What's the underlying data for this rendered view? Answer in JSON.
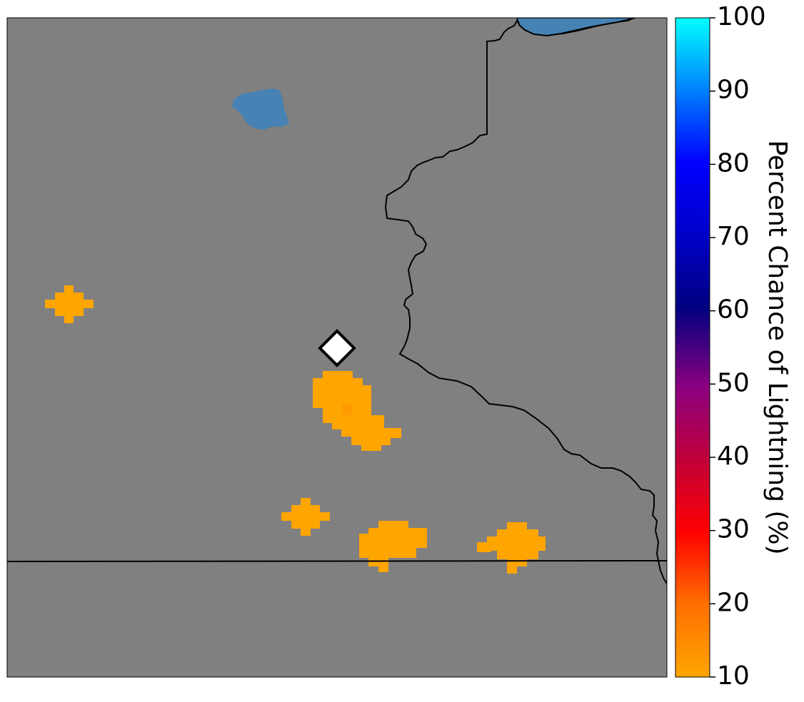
{
  "map": {
    "land_color": "#808080",
    "water_color": "#4682b4",
    "border_color": "#000000",
    "marker": {
      "shape": "diamond",
      "fill": "#ffffff",
      "stroke": "#000000"
    },
    "lightning_color": "#ffa500",
    "lightning_peak_color": "#ff9a00"
  },
  "colorbar": {
    "title": "Percent Chance of Lightning (%)",
    "min": 10,
    "max": 100,
    "ticks": [
      "10",
      "20",
      "30",
      "40",
      "50",
      "60",
      "70",
      "80",
      "90",
      "100"
    ],
    "gradient_colors": [
      "#ffa500",
      "#ff0000",
      "#8b0080",
      "#000080",
      "#0000ff",
      "#00ffff"
    ]
  }
}
